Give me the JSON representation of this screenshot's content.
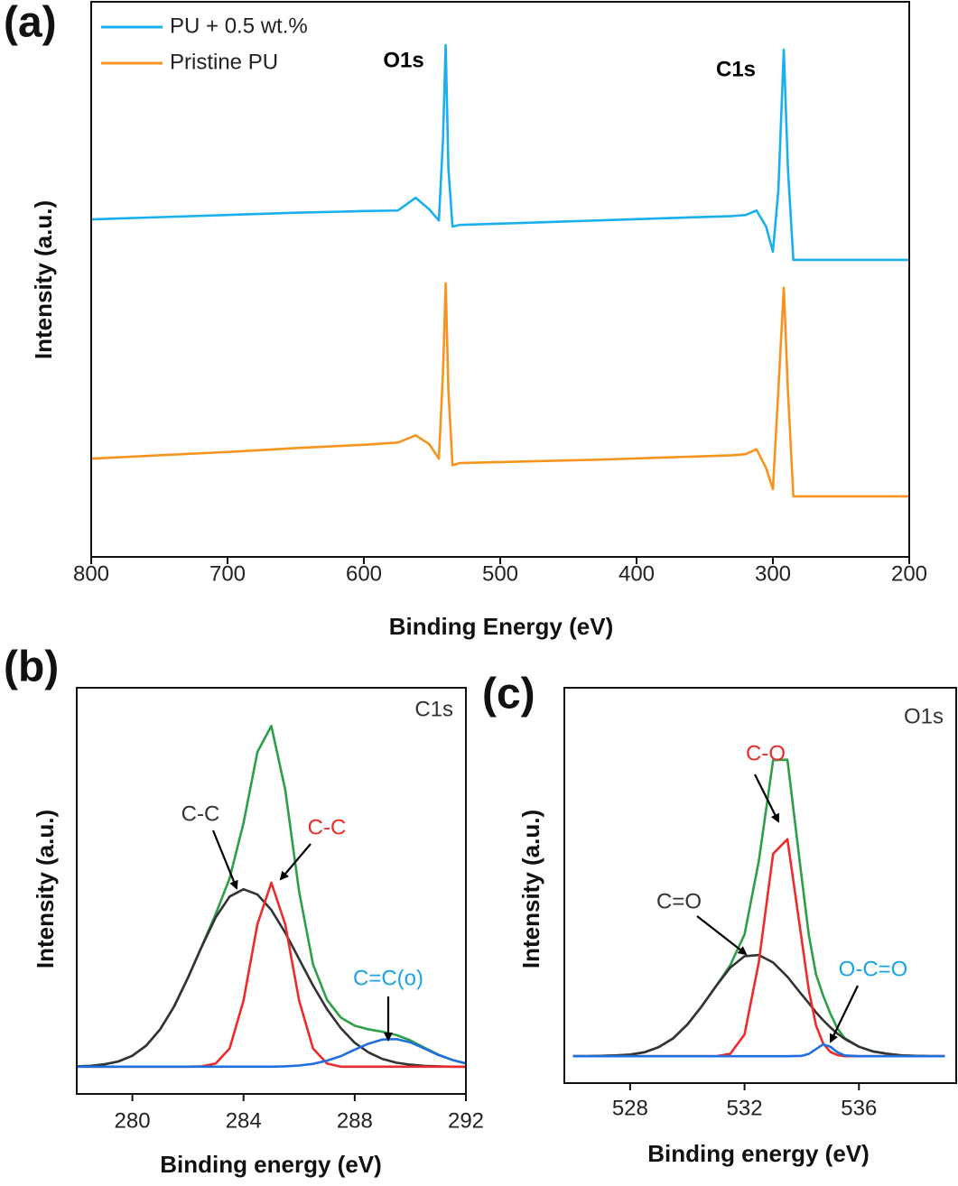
{
  "chart_data": [
    {
      "type": "line",
      "panel_label": "(a)",
      "x_label": "Binding Energy (eV)",
      "y_label": "Intensity (a.u.)",
      "xlim": [
        800,
        200
      ],
      "xticks": [
        800,
        700,
        600,
        500,
        400,
        300,
        200
      ],
      "ylim": [
        0,
        100
      ],
      "legend": "upper left",
      "x": [
        800,
        750,
        700,
        650,
        600,
        575,
        562,
        552,
        545,
        542,
        540,
        538,
        535,
        530,
        480,
        430,
        380,
        330,
        320,
        312,
        305,
        300,
        296,
        292,
        289,
        285,
        250,
        200
      ],
      "series": [
        {
          "name": "PU + 0.5 wt.%",
          "color": "#1ab0f0",
          "values": [
            60.8,
            61.2,
            61.6,
            62.0,
            62.3,
            62.4,
            64.7,
            62.6,
            60.6,
            75,
            92.2,
            70,
            59.5,
            59.8,
            60.2,
            60.6,
            61.0,
            61.4,
            61.6,
            62.4,
            59.5,
            55.0,
            66,
            91.4,
            70,
            53.5,
            53.5,
            53.5
          ]
        },
        {
          "name": "Pristine PU",
          "color": "#f7941d",
          "values": [
            17.7,
            18.3,
            18.9,
            19.6,
            20.2,
            20.6,
            21.9,
            20.3,
            17.7,
            33,
            49.3,
            30,
            16.5,
            16.9,
            17.2,
            17.5,
            17.9,
            18.3,
            18.5,
            19.4,
            16.0,
            12.2,
            30,
            48.5,
            30,
            10.9,
            10.9,
            10.9
          ]
        }
      ],
      "annotations": [
        {
          "text": "O1s",
          "color": "#000000"
        },
        {
          "text": "C1s",
          "color": "#000000"
        }
      ]
    },
    {
      "type": "line",
      "panel_label": "(b)",
      "x_label": "Binding energy (eV)",
      "y_label": "Intensity (a.u.)",
      "xlim": [
        278,
        292
      ],
      "xticks": [
        280,
        284,
        288,
        292
      ],
      "ylim": [
        0,
        100
      ],
      "x": [
        278,
        278.5,
        279,
        279.5,
        280,
        280.5,
        281,
        281.5,
        282,
        282.5,
        283,
        283.5,
        284,
        284.5,
        285,
        285.5,
        286,
        286.5,
        287,
        287.5,
        288,
        288.5,
        289,
        289.5,
        290,
        290.5,
        291,
        291.5,
        292
      ],
      "series": [
        {
          "color": "#2ca048",
          "values": [
            6.8,
            6.9,
            7.3,
            8.0,
            9.4,
            11.9,
            15.9,
            21.5,
            28.6,
            36.4,
            44.3,
            53.1,
            66.7,
            84.2,
            90.6,
            74.9,
            49.8,
            31.9,
            23.2,
            18.8,
            16.8,
            15.9,
            15.3,
            14.5,
            13.2,
            11.4,
            9.7,
            8.4,
            7.5
          ]
        },
        {
          "color": "#333333",
          "values": [
            6.8,
            6.9,
            7.3,
            8.0,
            9.4,
            11.9,
            15.9,
            21.5,
            28.6,
            36.3,
            43.5,
            48.6,
            50.4,
            49.1,
            45.3,
            39.7,
            33.2,
            26.7,
            20.9,
            16.2,
            12.6,
            10.2,
            8.6,
            7.7,
            7.2,
            6.9,
            6.8,
            6.7,
            6.7
          ]
        },
        {
          "color": "#ee2a2a",
          "values": [
            6.7,
            6.7,
            6.7,
            6.7,
            6.7,
            6.7,
            6.7,
            6.7,
            6.7,
            6.8,
            7.5,
            11.2,
            23.0,
            41.8,
            52.0,
            41.8,
            23.0,
            11.2,
            7.5,
            6.7,
            6.7,
            6.7,
            6.7,
            6.7,
            6.7,
            6.7,
            6.7,
            6.7,
            6.7
          ]
        },
        {
          "color": "#1f6fe0",
          "values": [
            6.7,
            6.7,
            6.7,
            6.7,
            6.7,
            6.7,
            6.7,
            6.7,
            6.7,
            6.7,
            6.7,
            6.7,
            6.7,
            6.7,
            6.7,
            6.8,
            7.0,
            7.4,
            8.2,
            9.3,
            10.9,
            12.4,
            13.4,
            13.5,
            12.7,
            11.2,
            9.6,
            8.4,
            7.5
          ]
        }
      ],
      "annotations": [
        {
          "text": "C1s",
          "color": "#333333"
        },
        {
          "text": "C-C",
          "color": "#333333"
        },
        {
          "text": "C-C",
          "color": "#ee2a2a"
        },
        {
          "text": "C=C(o)",
          "color": "#1aa3e8"
        }
      ]
    },
    {
      "type": "line",
      "panel_label": "(c)",
      "x_label": "Binding energy (eV)",
      "y_label": "Intensity (a.u.)",
      "xlim": [
        525.7,
        539.4
      ],
      "xticks": [
        528,
        532,
        536
      ],
      "ylim": [
        0,
        100
      ],
      "x": [
        526,
        526.5,
        527,
        527.5,
        528,
        528.5,
        529,
        529.5,
        530,
        530.5,
        531,
        531.5,
        532,
        532.5,
        533,
        533.5,
        534,
        534.25,
        534.5,
        534.75,
        535,
        535.25,
        535.5,
        536,
        536.5,
        537,
        537.5,
        538,
        538.5,
        539
      ],
      "series": [
        {
          "color": "#2ca048",
          "values": [
            6.8,
            6.8,
            6.9,
            7.0,
            7.2,
            7.8,
            9.1,
            11.3,
            14.8,
            19.4,
            24.5,
            29.8,
            37.6,
            56.2,
            81.7,
            81.8,
            51.9,
            37.4,
            27.5,
            22.1,
            17.6,
            13.8,
            11.4,
            9.2,
            8.0,
            7.4,
            7.0,
            6.9,
            6.8,
            6.8
          ]
        },
        {
          "color": "#333333",
          "values": [
            6.8,
            6.8,
            6.9,
            7.0,
            7.2,
            7.8,
            9.1,
            11.3,
            14.8,
            19.4,
            24.5,
            29.2,
            32.1,
            32.4,
            30.5,
            26.9,
            22.4,
            20.2,
            17.9,
            15.9,
            14.1,
            12.5,
            11.2,
            9.2,
            8.0,
            7.4,
            7.0,
            6.9,
            6.8,
            6.8
          ]
        },
        {
          "color": "#ee2a2a",
          "values": [
            6.8,
            6.8,
            6.8,
            6.8,
            6.8,
            6.8,
            6.8,
            6.8,
            6.8,
            6.8,
            6.8,
            7.4,
            12.3,
            30.6,
            58.0,
            61.7,
            36.2,
            23.4,
            14.6,
            10.0,
            7.9,
            7.1,
            6.8,
            6.8,
            6.8,
            6.8,
            6.8,
            6.8,
            6.8,
            6.8
          ]
        },
        {
          "color": "#1f6fe0",
          "values": [
            6.8,
            6.8,
            6.8,
            6.8,
            6.8,
            6.8,
            6.8,
            6.8,
            6.8,
            6.8,
            6.8,
            6.8,
            6.8,
            6.8,
            6.8,
            6.8,
            6.9,
            7.4,
            8.6,
            9.8,
            9.2,
            7.8,
            7.0,
            6.8,
            6.8,
            6.8,
            6.8,
            6.8,
            6.8,
            6.8
          ]
        }
      ],
      "annotations": [
        {
          "text": "O1s",
          "color": "#333333"
        },
        {
          "text": "C-O",
          "color": "#ee2a2a"
        },
        {
          "text": "C=O",
          "color": "#333333"
        },
        {
          "text": "O-C=O",
          "color": "#1aa3e8"
        }
      ]
    }
  ]
}
